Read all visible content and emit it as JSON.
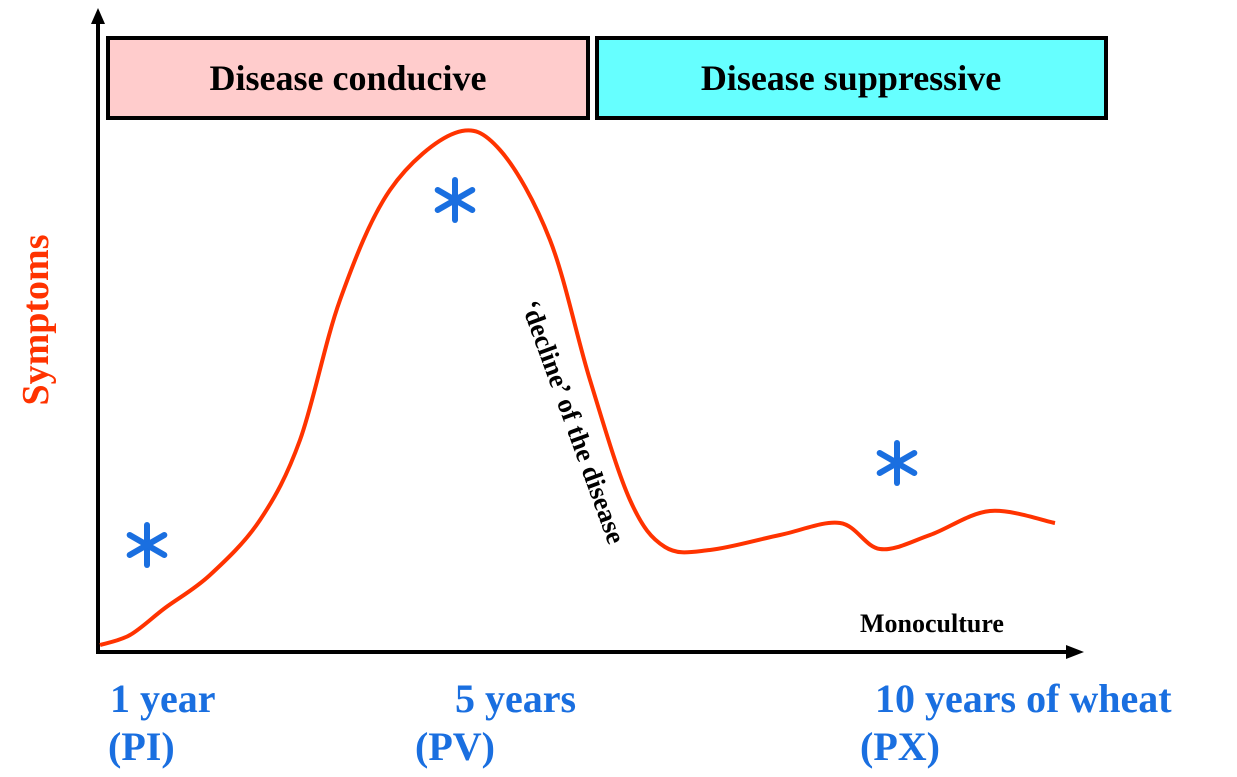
{
  "phases": [
    "Disease conducive",
    "Disease suppressive"
  ],
  "y_axis_label": "Symptoms",
  "x_axis_label": "Monoculture",
  "annotation": "‘decline’ of the disease",
  "time_points": [
    {
      "label": "1 year",
      "code": "(PI)"
    },
    {
      "label": "5 years",
      "code": "(PV)"
    },
    {
      "label": "10 years of wheat",
      "code": "(PX)"
    }
  ]
}
